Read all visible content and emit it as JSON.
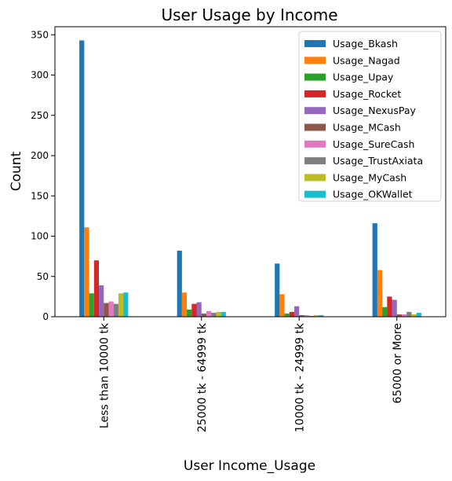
{
  "chart_data": {
    "type": "bar",
    "title": "User Usage by Income",
    "xlabel": "User Income_Usage",
    "ylabel": "Count",
    "ylim": [
      0,
      360
    ],
    "yticks": [
      0,
      50,
      100,
      150,
      200,
      250,
      300,
      350
    ],
    "legend_position": "top-right",
    "grid": false,
    "categories": [
      "Less than 10000 tk",
      "25000 tk - 64999 tk",
      "10000 tk - 24999 tk",
      "65000 or More"
    ],
    "series": [
      {
        "name": "Usage_Bkash",
        "color": "#1f77b4",
        "values": [
          343,
          82,
          66,
          116
        ]
      },
      {
        "name": "Usage_Nagad",
        "color": "#ff7f0e",
        "values": [
          111,
          30,
          28,
          58
        ]
      },
      {
        "name": "Usage_Upay",
        "color": "#2ca02c",
        "values": [
          29,
          9,
          4,
          12
        ]
      },
      {
        "name": "Usage_Rocket",
        "color": "#d62728",
        "values": [
          70,
          16,
          6,
          25
        ]
      },
      {
        "name": "Usage_NexusPay",
        "color": "#9467bd",
        "values": [
          39,
          18,
          13,
          21
        ]
      },
      {
        "name": "Usage_MCash",
        "color": "#8c564b",
        "values": [
          17,
          4,
          2,
          3
        ]
      },
      {
        "name": "Usage_SureCash",
        "color": "#e377c2",
        "values": [
          19,
          7,
          2,
          3
        ]
      },
      {
        "name": "Usage_TrustAxiata",
        "color": "#7f7f7f",
        "values": [
          16,
          5,
          1,
          6
        ]
      },
      {
        "name": "Usage_MyCash",
        "color": "#bcbd22",
        "values": [
          29,
          6,
          2,
          3
        ]
      },
      {
        "name": "Usage_OKWallet",
        "color": "#17becf",
        "values": [
          30,
          6,
          2,
          5
        ]
      }
    ]
  }
}
